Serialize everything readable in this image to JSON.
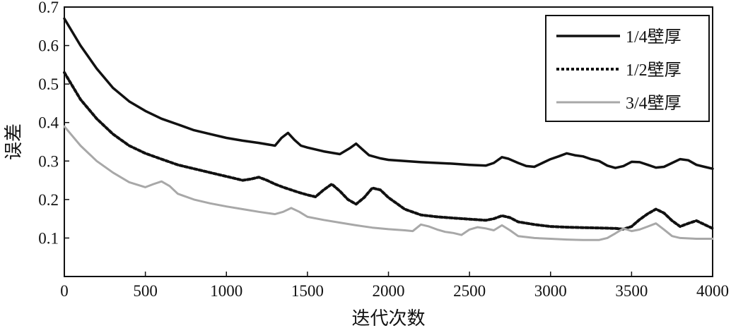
{
  "chart_data": {
    "type": "line",
    "title": "",
    "xlabel": "迭代次数",
    "ylabel": "误差",
    "xlim": [
      0,
      4000
    ],
    "ylim": [
      0,
      0.7
    ],
    "xticks": [
      0,
      500,
      1000,
      1500,
      2000,
      2500,
      3000,
      3500,
      4000
    ],
    "yticks": [
      0,
      0.1,
      0.2,
      0.3,
      0.4,
      0.5,
      0.6,
      0.7
    ],
    "xtick_labels": [
      "0",
      "500",
      "1000",
      "1500",
      "2000",
      "2500",
      "3000",
      "3500",
      "4000"
    ],
    "ytick_labels": [
      "",
      "0.1",
      "0.2",
      "0.3",
      "0.4",
      "0.5",
      "0.6",
      "0.7"
    ],
    "grid": false,
    "legend_position": "top-right",
    "series": [
      {
        "name": "1/4壁厚",
        "style": "solid",
        "color": "#111111",
        "x": [
          0,
          100,
          200,
          300,
          400,
          500,
          600,
          700,
          800,
          900,
          1000,
          1100,
          1200,
          1300,
          1340,
          1380,
          1420,
          1460,
          1500,
          1600,
          1700,
          1760,
          1800,
          1840,
          1880,
          1950,
          2000,
          2100,
          2200,
          2300,
          2400,
          2500,
          2600,
          2650,
          2700,
          2740,
          2800,
          2850,
          2900,
          2950,
          3000,
          3050,
          3100,
          3150,
          3200,
          3250,
          3300,
          3350,
          3400,
          3450,
          3500,
          3550,
          3600,
          3650,
          3700,
          3750,
          3800,
          3850,
          3900,
          3950,
          4000
        ],
        "y": [
          0.67,
          0.6,
          0.54,
          0.49,
          0.455,
          0.43,
          0.41,
          0.395,
          0.38,
          0.37,
          0.36,
          0.353,
          0.347,
          0.34,
          0.36,
          0.373,
          0.355,
          0.34,
          0.335,
          0.325,
          0.318,
          0.333,
          0.345,
          0.33,
          0.315,
          0.307,
          0.303,
          0.3,
          0.297,
          0.295,
          0.293,
          0.29,
          0.288,
          0.295,
          0.31,
          0.306,
          0.295,
          0.287,
          0.285,
          0.295,
          0.305,
          0.312,
          0.32,
          0.315,
          0.312,
          0.305,
          0.3,
          0.288,
          0.282,
          0.287,
          0.298,
          0.297,
          0.29,
          0.283,
          0.285,
          0.295,
          0.305,
          0.302,
          0.29,
          0.285,
          0.28
        ]
      },
      {
        "name": "1/2壁厚",
        "style": "dashed",
        "color": "#111111",
        "x": [
          0,
          100,
          200,
          300,
          400,
          500,
          600,
          700,
          800,
          900,
          1000,
          1100,
          1150,
          1200,
          1250,
          1300,
          1350,
          1400,
          1450,
          1500,
          1550,
          1600,
          1650,
          1700,
          1750,
          1800,
          1850,
          1900,
          1950,
          2000,
          2050,
          2100,
          2200,
          2300,
          2400,
          2500,
          2600,
          2650,
          2700,
          2750,
          2800,
          2900,
          3000,
          3100,
          3200,
          3300,
          3400,
          3450,
          3500,
          3550,
          3600,
          3650,
          3700,
          3750,
          3800,
          3850,
          3900,
          3950,
          4000
        ],
        "y": [
          0.53,
          0.46,
          0.41,
          0.37,
          0.34,
          0.32,
          0.305,
          0.29,
          0.28,
          0.27,
          0.26,
          0.25,
          0.253,
          0.258,
          0.25,
          0.24,
          0.232,
          0.225,
          0.218,
          0.212,
          0.207,
          0.225,
          0.24,
          0.222,
          0.2,
          0.188,
          0.205,
          0.23,
          0.225,
          0.205,
          0.19,
          0.175,
          0.16,
          0.155,
          0.152,
          0.149,
          0.146,
          0.15,
          0.158,
          0.153,
          0.142,
          0.135,
          0.13,
          0.128,
          0.127,
          0.126,
          0.125,
          0.123,
          0.13,
          0.148,
          0.163,
          0.175,
          0.165,
          0.145,
          0.13,
          0.138,
          0.145,
          0.135,
          0.125
        ]
      },
      {
        "name": "3/4壁厚",
        "style": "solid",
        "color": "#a8a8a8",
        "x": [
          0,
          100,
          200,
          300,
          400,
          500,
          550,
          600,
          650,
          700,
          800,
          900,
          1000,
          1100,
          1200,
          1300,
          1350,
          1400,
          1450,
          1500,
          1600,
          1700,
          1800,
          1900,
          2000,
          2100,
          2150,
          2200,
          2250,
          2300,
          2350,
          2400,
          2450,
          2500,
          2550,
          2600,
          2650,
          2700,
          2750,
          2800,
          2900,
          3000,
          3100,
          3200,
          3300,
          3350,
          3400,
          3450,
          3500,
          3550,
          3600,
          3650,
          3700,
          3750,
          3800,
          3900,
          4000
        ],
        "y": [
          0.39,
          0.34,
          0.3,
          0.27,
          0.245,
          0.232,
          0.24,
          0.247,
          0.235,
          0.215,
          0.2,
          0.19,
          0.182,
          0.175,
          0.168,
          0.162,
          0.168,
          0.178,
          0.168,
          0.155,
          0.147,
          0.14,
          0.133,
          0.127,
          0.123,
          0.12,
          0.118,
          0.135,
          0.13,
          0.122,
          0.116,
          0.113,
          0.108,
          0.122,
          0.128,
          0.125,
          0.12,
          0.133,
          0.12,
          0.105,
          0.1,
          0.098,
          0.096,
          0.095,
          0.095,
          0.1,
          0.112,
          0.125,
          0.118,
          0.122,
          0.13,
          0.138,
          0.122,
          0.105,
          0.1,
          0.098,
          0.098
        ]
      }
    ]
  }
}
